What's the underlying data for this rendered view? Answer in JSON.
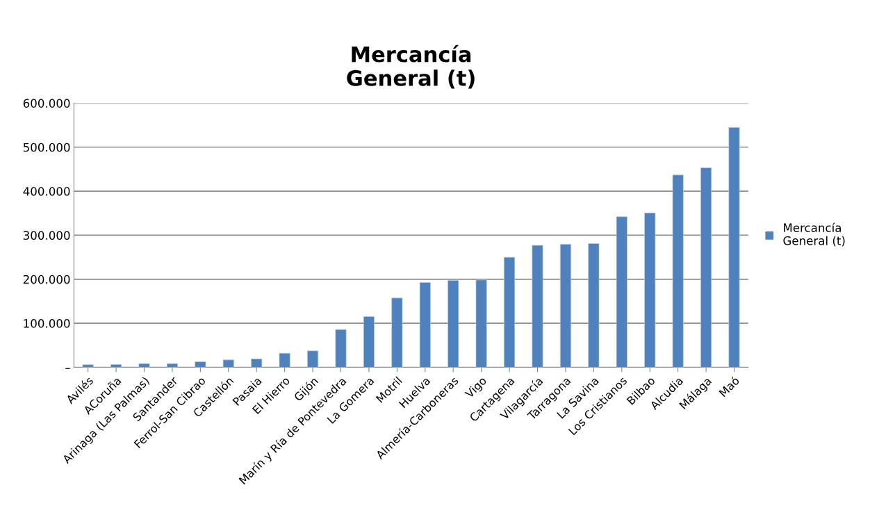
{
  "chart_data": {
    "type": "bar",
    "title": "Mercancía\nGeneral (t)",
    "categories": [
      "Avilés",
      "ACoruña",
      "Arinaga (Las Palmas)",
      "Santander",
      "Ferrol-San Cibrao",
      "Castellón",
      "Pasaia",
      "El Hierro",
      "Gijón",
      "Marín y Ría de Pontevedra",
      "La Gomera",
      "Motril",
      "Huelva",
      "Almería-Carboneras",
      "Vigo",
      "Cartagena",
      "Vilagarcía",
      "Tarragona",
      "La Savina",
      "Los Cristianos",
      "Bilbao",
      "Alcudia",
      "Málaga",
      "Maó"
    ],
    "series": [
      {
        "name": "Mercancía\nGeneral (t)",
        "color": "#4f81bd",
        "values": [
          6000,
          6300,
          8400,
          8400,
          12600,
          16800,
          19000,
          32000,
          37400,
          85800,
          115300,
          157400,
          192600,
          197400,
          198400,
          250000,
          276900,
          279500,
          281100,
          342100,
          350500,
          436800,
          453200,
          544800
        ]
      }
    ],
    "ylim": [
      0,
      600000
    ],
    "yticks": [
      {
        "value": 0,
        "label": "–"
      },
      {
        "value": 100000,
        "label": "100.000"
      },
      {
        "value": 200000,
        "label": "200.000"
      },
      {
        "value": 300000,
        "label": "300.000"
      },
      {
        "value": 400000,
        "label": "400.000"
      },
      {
        "value": 500000,
        "label": "500.000"
      },
      {
        "value": 600000,
        "label": "600.000"
      }
    ],
    "grid": "y",
    "legend": "right"
  }
}
